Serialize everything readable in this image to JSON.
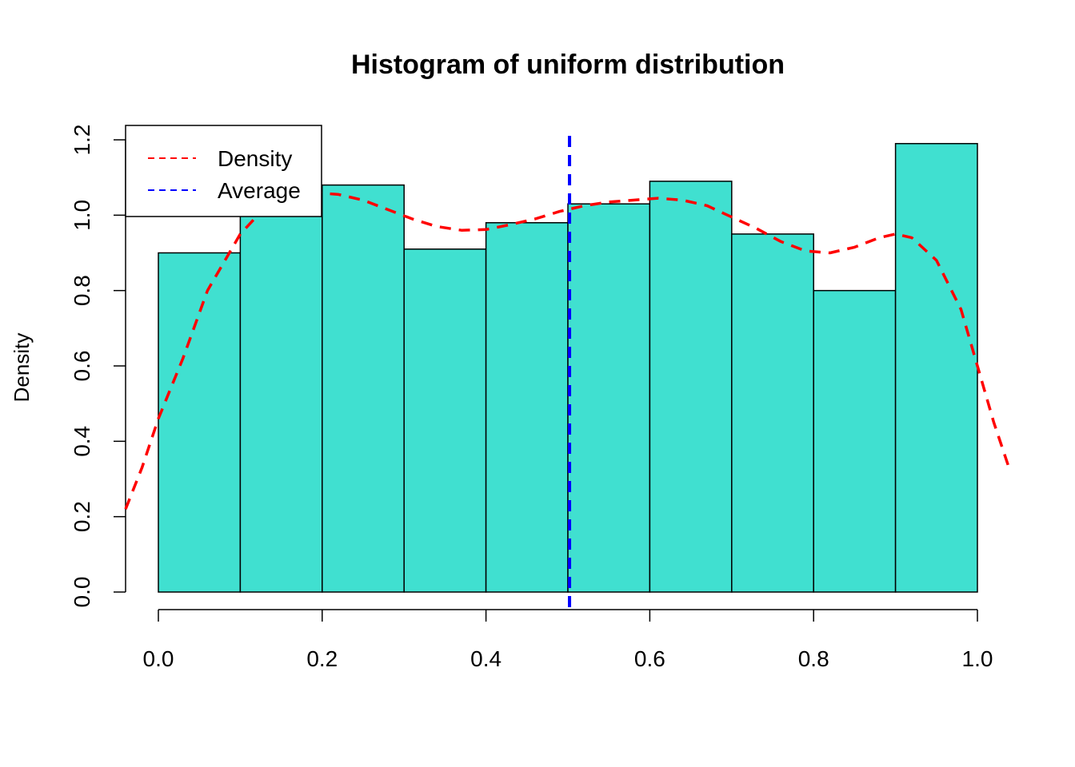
{
  "chart_data": {
    "type": "bar",
    "title": "Histogram of uniform distribution",
    "xlabel": "",
    "ylabel": "Density",
    "bins": [
      {
        "from": 0.0,
        "to": 0.1,
        "density": 0.9
      },
      {
        "from": 0.1,
        "to": 0.2,
        "density": 1.0
      },
      {
        "from": 0.2,
        "to": 0.3,
        "density": 1.08
      },
      {
        "from": 0.3,
        "to": 0.4,
        "density": 0.91
      },
      {
        "from": 0.4,
        "to": 0.5,
        "density": 0.98
      },
      {
        "from": 0.5,
        "to": 0.6,
        "density": 1.03
      },
      {
        "from": 0.6,
        "to": 0.7,
        "density": 1.09
      },
      {
        "from": 0.7,
        "to": 0.8,
        "density": 0.95
      },
      {
        "from": 0.8,
        "to": 0.9,
        "density": 0.8
      },
      {
        "from": 0.9,
        "to": 1.0,
        "density": 1.19
      }
    ],
    "x_ticks": [
      "0.0",
      "0.2",
      "0.4",
      "0.6",
      "0.8",
      "1.0"
    ],
    "y_ticks": [
      "0.0",
      "0.2",
      "0.4",
      "0.6",
      "0.8",
      "1.0",
      "1.2"
    ],
    "xlim": [
      -0.04,
      1.04
    ],
    "ylim": [
      0,
      1.2
    ],
    "density_curve": {
      "name": "Density",
      "color": "#ff0000",
      "style": "dashed",
      "x": [
        -0.04,
        -0.02,
        0.0,
        0.03,
        0.06,
        0.1,
        0.13,
        0.16,
        0.19,
        0.22,
        0.25,
        0.28,
        0.31,
        0.34,
        0.37,
        0.4,
        0.43,
        0.46,
        0.49,
        0.52,
        0.55,
        0.58,
        0.61,
        0.64,
        0.67,
        0.7,
        0.73,
        0.76,
        0.79,
        0.82,
        0.85,
        0.88,
        0.9,
        0.92,
        0.95,
        0.98,
        1.0,
        1.02,
        1.04
      ],
      "y": [
        0.22,
        0.33,
        0.46,
        0.62,
        0.8,
        0.95,
        1.02,
        1.05,
        1.06,
        1.055,
        1.04,
        1.015,
        0.99,
        0.97,
        0.96,
        0.962,
        0.975,
        0.99,
        1.01,
        1.025,
        1.035,
        1.04,
        1.045,
        1.04,
        1.025,
        0.995,
        0.965,
        0.93,
        0.905,
        0.9,
        0.915,
        0.94,
        0.95,
        0.94,
        0.88,
        0.75,
        0.6,
        0.45,
        0.32
      ]
    },
    "average_line": {
      "name": "Average",
      "color": "#0000ff",
      "style": "dashed",
      "x": 0.502
    },
    "legend": {
      "position": "top-left",
      "entries": [
        {
          "label": "Density",
          "color": "#ff0000"
        },
        {
          "label": "Average",
          "color": "#0000ff"
        }
      ]
    },
    "bar_fill": "#40e0d0",
    "bar_stroke": "#000000"
  }
}
